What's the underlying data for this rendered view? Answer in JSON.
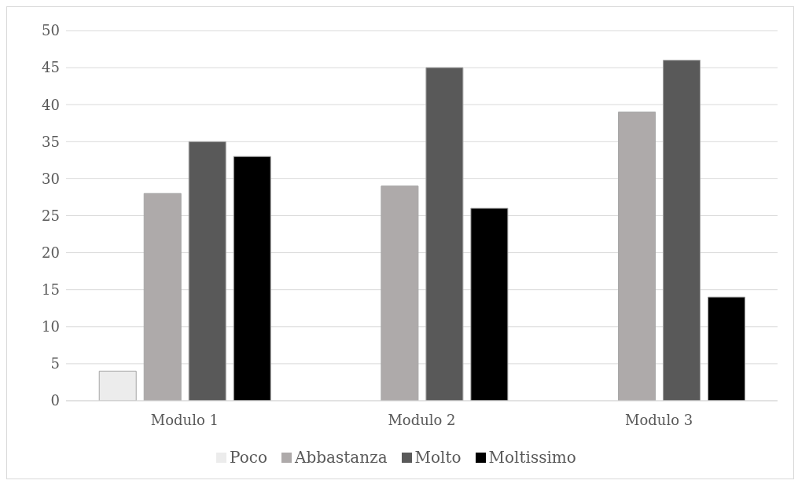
{
  "chart_data": {
    "type": "bar",
    "categories": [
      "Modulo 1",
      "Modulo 2",
      "Modulo 3"
    ],
    "series": [
      {
        "name": "Poco",
        "color": "#ececec",
        "values": [
          4,
          0,
          0
        ]
      },
      {
        "name": "Abbastanza",
        "color": "#aeaaaa",
        "values": [
          28,
          29,
          39
        ]
      },
      {
        "name": "Molto",
        "color": "#595959",
        "values": [
          35,
          45,
          46
        ]
      },
      {
        "name": "Moltissimo",
        "color": "#000000",
        "values": [
          33,
          26,
          14
        ]
      }
    ],
    "ylim": [
      0,
      50
    ],
    "yticks": [
      0,
      5,
      10,
      15,
      20,
      25,
      30,
      35,
      40,
      45,
      50
    ],
    "grid": "y",
    "legend": "bottom"
  }
}
